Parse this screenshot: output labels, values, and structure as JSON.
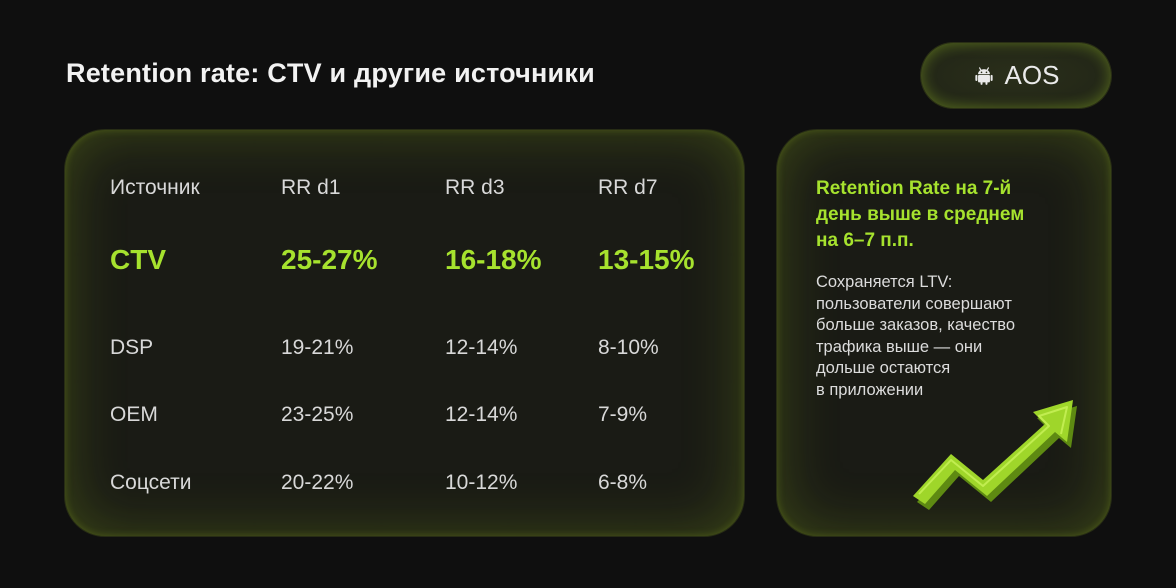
{
  "header": {
    "title": "Retention rate: CTV и другие источники",
    "platform_label": "AOS",
    "platform_icon": "android-icon"
  },
  "table": {
    "columns": [
      "Источник",
      "RR d1",
      "RR d3",
      "RR d7"
    ],
    "highlight_row": {
      "source": "CTV",
      "d1": "25-27%",
      "d3": "16-18%",
      "d7": "13-15%"
    },
    "rows": [
      {
        "source": "DSP",
        "d1": "19-21%",
        "d3": "12-14%",
        "d7": "8-10%"
      },
      {
        "source": "OEM",
        "d1": "23-25%",
        "d3": "12-14%",
        "d7": "7-9%"
      },
      {
        "source": "Соцсети",
        "d1": "20-22%",
        "d3": "10-12%",
        "d7": "6-8%"
      }
    ]
  },
  "note": {
    "headline_lines": [
      "Retention Rate на 7-й",
      "день выше в среднем",
      "на 6–7 п.п."
    ],
    "body_lines": [
      "Сохраняется LTV:",
      "пользователи совершают",
      "больше заказов, качество",
      "трафика выше — они",
      "дольше остаются",
      "в приложении"
    ],
    "decoration_icon": "trend-up-arrow-icon"
  },
  "colors": {
    "background": "#0f0f0f",
    "accent": "#a6e22e",
    "card": "#1a1b15"
  }
}
